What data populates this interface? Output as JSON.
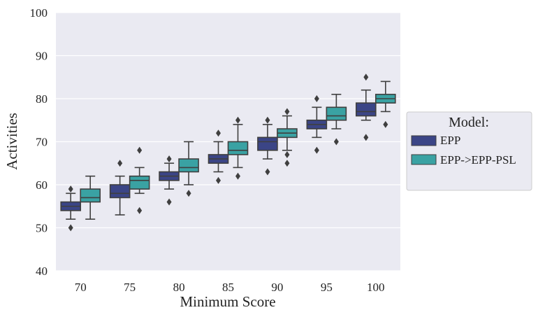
{
  "chart_data": {
    "type": "box",
    "xlabel": "Minimum Score",
    "ylabel": "Activities",
    "ylim": [
      40,
      100
    ],
    "yticks": [
      40,
      50,
      60,
      70,
      80,
      90,
      100
    ],
    "categories": [
      "70",
      "75",
      "80",
      "85",
      "90",
      "95",
      "100"
    ],
    "grid": true,
    "legend": {
      "title": "Model:",
      "placement": "right"
    },
    "series": [
      {
        "name": "EPP",
        "color": "#3b4586",
        "boxes": [
          {
            "whislo": 52,
            "q1": 54,
            "med": 55,
            "q3": 56,
            "whishi": 58,
            "fliers": [
              50,
              59
            ]
          },
          {
            "whislo": 53,
            "q1": 57,
            "med": 58,
            "q3": 60,
            "whishi": 62,
            "fliers": [
              65
            ]
          },
          {
            "whislo": 59,
            "q1": 61,
            "med": 62,
            "q3": 63,
            "whishi": 65,
            "fliers": [
              56,
              66
            ]
          },
          {
            "whislo": 63,
            "q1": 65,
            "med": 66,
            "q3": 67,
            "whishi": 70,
            "fliers": [
              61,
              72
            ]
          },
          {
            "whislo": 66,
            "q1": 68,
            "med": 70,
            "q3": 71,
            "whishi": 74,
            "fliers": [
              63,
              75
            ]
          },
          {
            "whislo": 71,
            "q1": 73,
            "med": 74,
            "q3": 75,
            "whishi": 78,
            "fliers": [
              68,
              80
            ]
          },
          {
            "whislo": 75,
            "q1": 76,
            "med": 77,
            "q3": 79,
            "whishi": 82,
            "fliers": [
              71,
              85
            ]
          }
        ]
      },
      {
        "name": "EPP->EPP-PSL",
        "color": "#3aa2a3",
        "boxes": [
          {
            "whislo": 52,
            "q1": 56,
            "med": 57,
            "q3": 59,
            "whishi": 62,
            "fliers": []
          },
          {
            "whislo": 58,
            "q1": 59,
            "med": 61,
            "q3": 62,
            "whishi": 64,
            "fliers": [
              54,
              68
            ]
          },
          {
            "whislo": 60,
            "q1": 63,
            "med": 64,
            "q3": 66,
            "whishi": 70,
            "fliers": [
              58
            ]
          },
          {
            "whislo": 64,
            "q1": 67,
            "med": 68,
            "q3": 70,
            "whishi": 74,
            "fliers": [
              62,
              75
            ]
          },
          {
            "whislo": 68,
            "q1": 71,
            "med": 72,
            "q3": 73,
            "whishi": 76,
            "fliers": [
              65,
              67,
              77
            ]
          },
          {
            "whislo": 73,
            "q1": 75,
            "med": 76,
            "q3": 78,
            "whishi": 81,
            "fliers": [
              70
            ]
          },
          {
            "whislo": 77,
            "q1": 79,
            "med": 80,
            "q3": 81,
            "whishi": 84,
            "fliers": [
              74
            ]
          }
        ]
      }
    ]
  }
}
